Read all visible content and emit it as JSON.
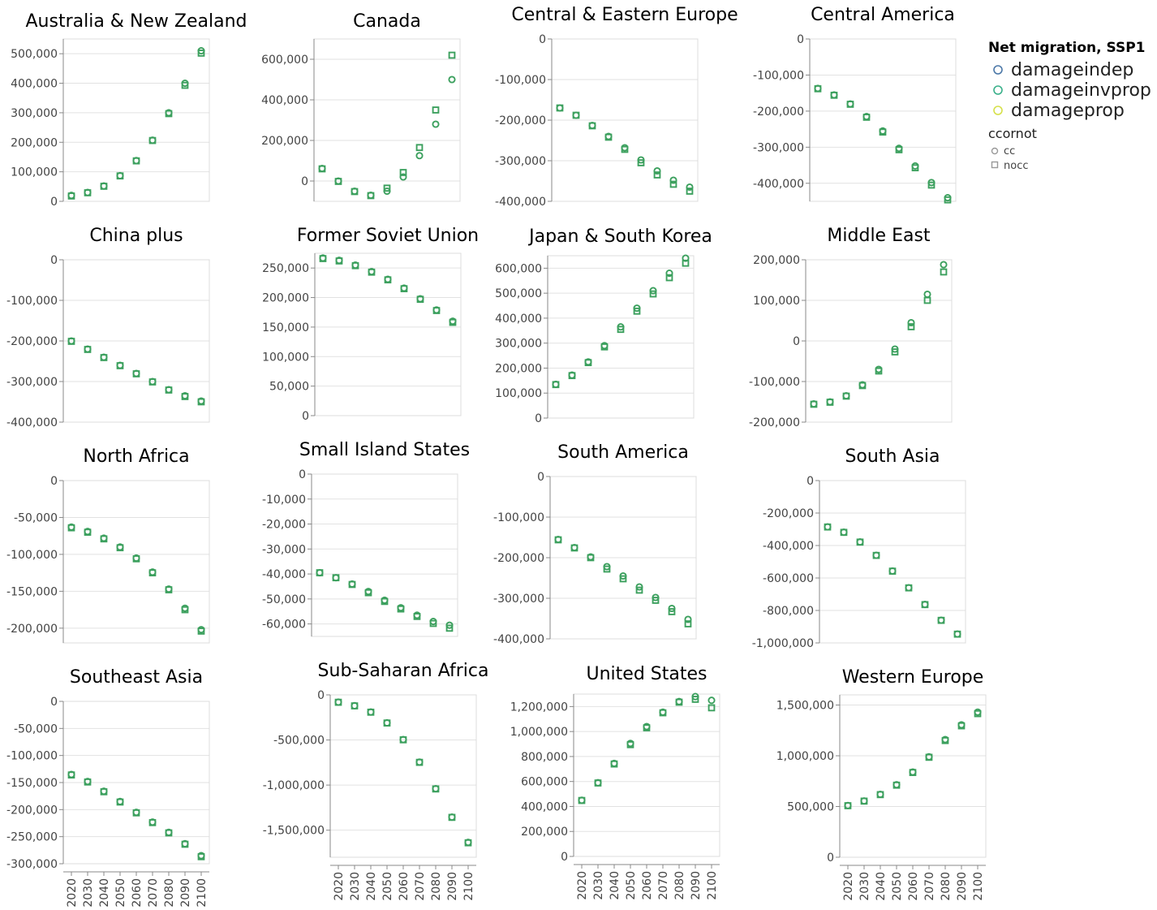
{
  "legend": {
    "title": "Net migration, SSP1",
    "color_entries": [
      {
        "name": "damageindep",
        "color": "#4c78a8"
      },
      {
        "name": "damageinvprop",
        "color": "#3ab08a"
      },
      {
        "name": "damageprop",
        "color": "#d6e04a"
      }
    ],
    "shape_title": "ccornot",
    "shape_entries": [
      {
        "name": "cc",
        "shape": "circle"
      },
      {
        "name": "nocc",
        "shape": "square"
      }
    ]
  },
  "chart_data": [
    {
      "type": "scatter",
      "title": "Australia & New Zealand",
      "x": [
        "2020",
        "2030",
        "2040",
        "2050",
        "2060",
        "2070",
        "2080",
        "2090",
        "2100"
      ],
      "ylim": [
        0,
        550000
      ],
      "yticks": [
        0,
        100000,
        200000,
        300000,
        400000,
        500000
      ],
      "series": [
        {
          "name": "cc",
          "values": [
            20000,
            30000,
            52000,
            87000,
            138000,
            207000,
            300000,
            400000,
            510000
          ]
        },
        {
          "name": "nocc",
          "values": [
            18000,
            29000,
            51000,
            86000,
            137000,
            206000,
            297000,
            393000,
            502000
          ]
        }
      ]
    },
    {
      "type": "scatter",
      "title": "Canada",
      "x": [
        "2020",
        "2030",
        "2040",
        "2050",
        "2060",
        "2070",
        "2080",
        "2090",
        "2100"
      ],
      "ylim": [
        -100000,
        700000
      ],
      "yticks": [
        0,
        200000,
        400000,
        600000
      ],
      "series": [
        {
          "name": "cc",
          "values": [
            62000,
            0,
            -50000,
            -70000,
            -50000,
            20000,
            125000,
            280000,
            500000
          ]
        },
        {
          "name": "nocc",
          "values": [
            60000,
            -2000,
            -52000,
            -72000,
            -35000,
            42000,
            165000,
            350000,
            620000
          ]
        }
      ]
    },
    {
      "type": "scatter",
      "title": "Central & Eastern Europe",
      "x": [
        "2020",
        "2030",
        "2040",
        "2050",
        "2060",
        "2070",
        "2080",
        "2090",
        "2100"
      ],
      "ylim": [
        -400000,
        0
      ],
      "yticks": [
        0,
        -100000,
        -200000,
        -300000,
        -400000
      ],
      "series": [
        {
          "name": "cc",
          "values": [
            -170000,
            -188000,
            -213000,
            -240000,
            -268000,
            -298000,
            -325000,
            -348000,
            -365000
          ]
        },
        {
          "name": "nocc",
          "values": [
            -170000,
            -188000,
            -214000,
            -242000,
            -272000,
            -305000,
            -335000,
            -358000,
            -375000
          ]
        }
      ]
    },
    {
      "type": "scatter",
      "title": "Central America",
      "x": [
        "2020",
        "2030",
        "2040",
        "2050",
        "2060",
        "2070",
        "2080",
        "2090",
        "2100"
      ],
      "ylim": [
        -450000,
        0
      ],
      "yticks": [
        0,
        -100000,
        -200000,
        -300000,
        -400000
      ],
      "series": [
        {
          "name": "cc",
          "values": [
            -137000,
            -155000,
            -180000,
            -215000,
            -255000,
            -303000,
            -352000,
            -398000,
            -440000
          ]
        },
        {
          "name": "nocc",
          "values": [
            -138000,
            -156000,
            -181000,
            -217000,
            -258000,
            -307000,
            -357000,
            -405000,
            -446000
          ]
        }
      ]
    },
    {
      "type": "scatter",
      "title": "China plus",
      "x": [
        "2020",
        "2030",
        "2040",
        "2050",
        "2060",
        "2070",
        "2080",
        "2090",
        "2100"
      ],
      "ylim": [
        -400000,
        0
      ],
      "yticks": [
        0,
        -100000,
        -200000,
        -300000,
        -400000
      ],
      "series": [
        {
          "name": "cc",
          "values": [
            -200000,
            -220000,
            -240000,
            -260000,
            -280000,
            -300000,
            -320000,
            -335000,
            -348000
          ]
        },
        {
          "name": "nocc",
          "values": [
            -201000,
            -221000,
            -241000,
            -261000,
            -281000,
            -301000,
            -321000,
            -337000,
            -350000
          ]
        }
      ]
    },
    {
      "type": "scatter",
      "title": "Former Soviet Union",
      "x": [
        "2020",
        "2030",
        "2040",
        "2050",
        "2060",
        "2070",
        "2080",
        "2090",
        "2100"
      ],
      "ylim": [
        0,
        275000
      ],
      "yticks": [
        0,
        50000,
        100000,
        150000,
        200000,
        250000
      ],
      "series": [
        {
          "name": "cc",
          "values": [
            267000,
            263000,
            255000,
            244000,
            231000,
            216000,
            198000,
            179000,
            160000
          ]
        },
        {
          "name": "nocc",
          "values": [
            266000,
            262000,
            254000,
            243000,
            230000,
            215000,
            197000,
            178000,
            158000
          ]
        }
      ]
    },
    {
      "type": "scatter",
      "title": "Japan & South Korea",
      "x": [
        "2020",
        "2030",
        "2040",
        "2050",
        "2060",
        "2070",
        "2080",
        "2090",
        "2100"
      ],
      "ylim": [
        0,
        650000
      ],
      "yticks": [
        0,
        100000,
        200000,
        300000,
        400000,
        500000,
        600000
      ],
      "series": [
        {
          "name": "cc",
          "values": [
            135000,
            172000,
            225000,
            290000,
            365000,
            440000,
            510000,
            580000,
            640000
          ]
        },
        {
          "name": "nocc",
          "values": [
            134000,
            170000,
            222000,
            285000,
            355000,
            428000,
            497000,
            562000,
            620000
          ]
        }
      ]
    },
    {
      "type": "scatter",
      "title": "Middle East",
      "x": [
        "2020",
        "2030",
        "2040",
        "2050",
        "2060",
        "2070",
        "2080",
        "2090",
        "2100"
      ],
      "ylim": [
        -200000,
        200000
      ],
      "yticks": [
        -200000,
        -100000,
        0,
        100000,
        200000
      ],
      "series": [
        {
          "name": "cc",
          "values": [
            -155000,
            -150000,
            -135000,
            -108000,
            -70000,
            -20000,
            45000,
            115000,
            188000
          ]
        },
        {
          "name": "nocc",
          "values": [
            -156000,
            -151000,
            -136000,
            -110000,
            -74000,
            -27000,
            35000,
            100000,
            170000
          ]
        }
      ]
    },
    {
      "type": "scatter",
      "title": "North Africa",
      "x": [
        "2020",
        "2030",
        "2040",
        "2050",
        "2060",
        "2070",
        "2080",
        "2090",
        "2100"
      ],
      "ylim": [
        -220000,
        0
      ],
      "yticks": [
        0,
        -50000,
        -100000,
        -150000,
        -200000
      ],
      "series": [
        {
          "name": "cc",
          "values": [
            -63000,
            -69000,
            -78000,
            -90000,
            -105000,
            -124000,
            -147000,
            -173000,
            -202000
          ]
        },
        {
          "name": "nocc",
          "values": [
            -64000,
            -70000,
            -79000,
            -91000,
            -106000,
            -125000,
            -148000,
            -175000,
            -204000
          ]
        }
      ]
    },
    {
      "type": "scatter",
      "title": "Small Island States",
      "x": [
        "2020",
        "2030",
        "2040",
        "2050",
        "2060",
        "2070",
        "2080",
        "2090",
        "2100"
      ],
      "ylim": [
        -65000,
        0
      ],
      "yticks": [
        0,
        -10000,
        -20000,
        -30000,
        -40000,
        -50000,
        -60000
      ],
      "series": [
        {
          "name": "cc",
          "values": [
            -39500,
            -41500,
            -44000,
            -47000,
            -50500,
            -53500,
            -56500,
            -59000,
            -60500
          ]
        },
        {
          "name": "nocc",
          "values": [
            -39500,
            -41500,
            -44200,
            -47500,
            -51000,
            -54000,
            -57000,
            -59800,
            -61700
          ]
        }
      ]
    },
    {
      "type": "scatter",
      "title": "South America",
      "x": [
        "2020",
        "2030",
        "2040",
        "2050",
        "2060",
        "2070",
        "2080",
        "2090",
        "2100"
      ],
      "ylim": [
        -400000,
        0
      ],
      "yticks": [
        0,
        -100000,
        -200000,
        -300000,
        -400000
      ],
      "series": [
        {
          "name": "cc",
          "values": [
            -155000,
            -175000,
            -198000,
            -222000,
            -245000,
            -272000,
            -298000,
            -325000,
            -352000
          ]
        },
        {
          "name": "nocc",
          "values": [
            -156000,
            -176000,
            -200000,
            -228000,
            -252000,
            -280000,
            -305000,
            -333000,
            -363000
          ]
        }
      ]
    },
    {
      "type": "scatter",
      "title": "South Asia",
      "x": [
        "2020",
        "2030",
        "2040",
        "2050",
        "2060",
        "2070",
        "2080",
        "2090",
        "2100"
      ],
      "ylim": [
        -1000000,
        0
      ],
      "yticks": [
        0,
        -200000,
        -400000,
        -600000,
        -800000,
        -1000000
      ],
      "series": [
        {
          "name": "cc",
          "values": [
            -285000,
            -318000,
            -378000,
            -460000,
            -557000,
            -660000,
            -763000,
            -860000,
            -945000
          ]
        },
        {
          "name": "nocc",
          "values": [
            -286000,
            -319000,
            -379000,
            -461000,
            -558000,
            -661000,
            -764000,
            -861000,
            -946000
          ]
        }
      ]
    },
    {
      "type": "scatter",
      "title": "Southeast Asia",
      "x": [
        "2020",
        "2030",
        "2040",
        "2050",
        "2060",
        "2070",
        "2080",
        "2090",
        "2100"
      ],
      "ylim": [
        -300000,
        0
      ],
      "yticks": [
        0,
        -50000,
        -100000,
        -150000,
        -200000,
        -250000,
        -300000
      ],
      "series": [
        {
          "name": "cc",
          "values": [
            -135000,
            -148000,
            -166000,
            -185000,
            -205000,
            -223000,
            -242000,
            -263000,
            -285000
          ]
        },
        {
          "name": "nocc",
          "values": [
            -136000,
            -149000,
            -167000,
            -186000,
            -206000,
            -224000,
            -243000,
            -264000,
            -287000
          ]
        }
      ]
    },
    {
      "type": "scatter",
      "title": "Sub-Saharan Africa",
      "x": [
        "2020",
        "2030",
        "2040",
        "2050",
        "2060",
        "2070",
        "2080",
        "2090",
        "2100"
      ],
      "ylim": [
        -1800000,
        0
      ],
      "yticks": [
        0,
        -500000,
        -1000000,
        -1500000
      ],
      "series": [
        {
          "name": "cc",
          "values": [
            -80000,
            -120000,
            -190000,
            -310000,
            -495000,
            -745000,
            -1040000,
            -1355000,
            -1635000
          ]
        },
        {
          "name": "nocc",
          "values": [
            -82000,
            -122000,
            -192000,
            -312000,
            -498000,
            -748000,
            -1043000,
            -1358000,
            -1640000
          ]
        }
      ]
    },
    {
      "type": "scatter",
      "title": "United States",
      "x": [
        "2020",
        "2030",
        "2040",
        "2050",
        "2060",
        "2070",
        "2080",
        "2090",
        "2100"
      ],
      "ylim": [
        0,
        1300000
      ],
      "yticks": [
        0,
        200000,
        400000,
        600000,
        800000,
        1000000,
        1200000
      ],
      "series": [
        {
          "name": "cc",
          "values": [
            450000,
            590000,
            745000,
            905000,
            1040000,
            1155000,
            1240000,
            1280000,
            1250000
          ]
        },
        {
          "name": "nocc",
          "values": [
            448000,
            588000,
            740000,
            895000,
            1030000,
            1150000,
            1235000,
            1258000,
            1190000
          ]
        }
      ]
    },
    {
      "type": "scatter",
      "title": "Western Europe",
      "x": [
        "2020",
        "2030",
        "2040",
        "2050",
        "2060",
        "2070",
        "2080",
        "2090",
        "2100"
      ],
      "ylim": [
        0,
        1600000
      ],
      "yticks": [
        0,
        500000,
        1000000,
        1500000
      ],
      "series": [
        {
          "name": "cc",
          "values": [
            510000,
            555000,
            620000,
            715000,
            840000,
            990000,
            1160000,
            1305000,
            1430000
          ]
        },
        {
          "name": "nocc",
          "values": [
            508000,
            553000,
            617000,
            710000,
            835000,
            985000,
            1150000,
            1295000,
            1415000
          ]
        }
      ]
    }
  ]
}
